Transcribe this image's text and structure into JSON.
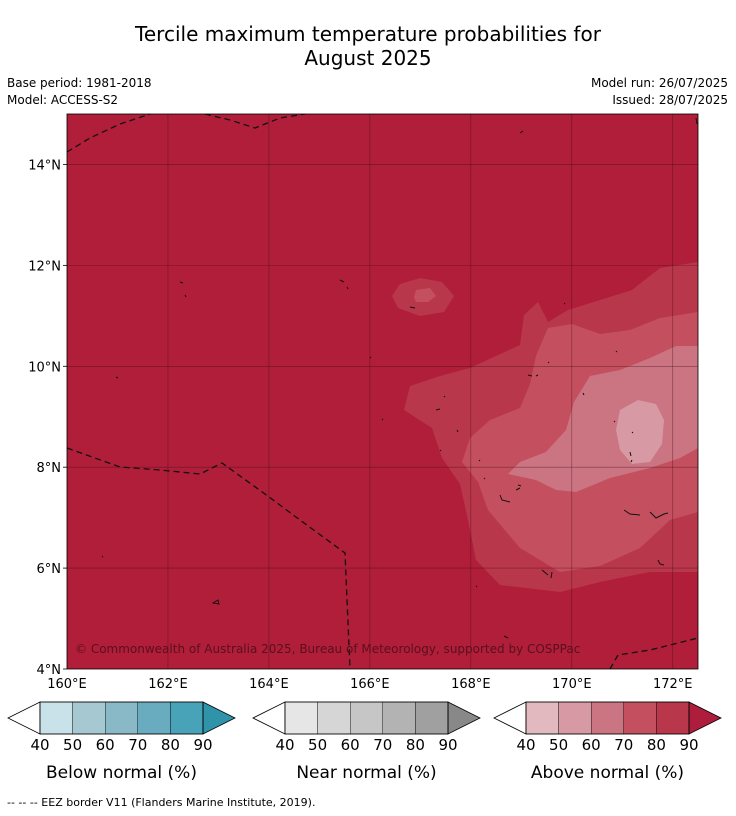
{
  "title": {
    "line1": "Tercile maximum temperature probabilities for",
    "line2": "August 2025"
  },
  "meta": {
    "base_period": "Base period: 1981-2018",
    "model": "Model: ACCESS-S2",
    "model_run": "Model run: 26/07/2025",
    "issued": "Issued: 28/07/2025"
  },
  "map": {
    "lon_range": [
      160,
      172.5
    ],
    "lat_range": [
      4,
      15
    ],
    "x_ticks": [
      {
        "value": 160,
        "label": "160°E"
      },
      {
        "value": 162,
        "label": "162°E"
      },
      {
        "value": 164,
        "label": "164°E"
      },
      {
        "value": 166,
        "label": "166°E"
      },
      {
        "value": 168,
        "label": "168°E"
      },
      {
        "value": 170,
        "label": "170°E"
      },
      {
        "value": 172,
        "label": "172°E"
      }
    ],
    "y_ticks": [
      {
        "value": 14,
        "label": "14°N"
      },
      {
        "value": 12,
        "label": "12°N"
      },
      {
        "value": 10,
        "label": "10°N"
      },
      {
        "value": 8,
        "label": "8°N"
      },
      {
        "value": 6,
        "label": "6°N"
      },
      {
        "value": 4,
        "label": "4°N"
      }
    ],
    "grid": true,
    "background_category": "Above normal",
    "background_probability": "90+",
    "copyright": "© Commonwealth of Australia 2025, Bureau of Meteorology, supported by COSPPac"
  },
  "legends": [
    {
      "label": "Below normal (%)",
      "ticks": [
        "40",
        "50",
        "60",
        "70",
        "80",
        "90"
      ],
      "colors": [
        "#ffffff",
        "#c9e1e8",
        "#a6c8d0",
        "#89b8c6",
        "#6aacbf",
        "#48a2b8",
        "#2f93aa"
      ]
    },
    {
      "label": "Near normal (%)",
      "ticks": [
        "40",
        "50",
        "60",
        "70",
        "80",
        "90"
      ],
      "colors": [
        "#ffffff",
        "#e6e6e6",
        "#d6d6d6",
        "#c6c6c6",
        "#b3b3b3",
        "#a0a0a0",
        "#888888"
      ]
    },
    {
      "label": "Above normal (%)",
      "ticks": [
        "40",
        "50",
        "60",
        "70",
        "80",
        "90"
      ],
      "colors": [
        "#ffffff",
        "#e3b9c0",
        "#d79aa4",
        "#cb7482",
        "#c4505f",
        "#b9374a",
        "#ae1e3c"
      ]
    }
  ],
  "footer": "-- -- -- EEZ border V11 (Flanders Marine Institute, 2019)."
}
